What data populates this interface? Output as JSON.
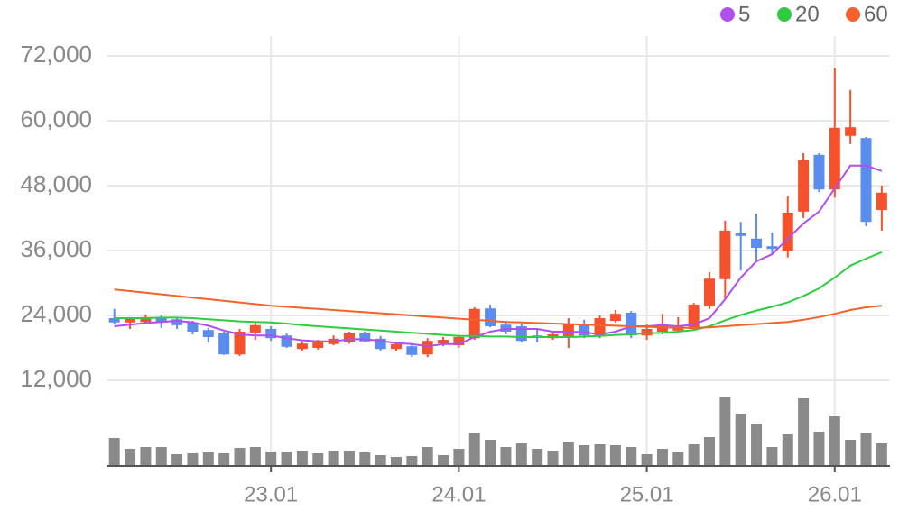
{
  "chart_data": {
    "type": "candlestick",
    "categories": [
      null,
      null,
      null,
      null,
      null,
      null,
      null,
      null,
      null,
      null,
      "23.01",
      null,
      null,
      null,
      null,
      null,
      null,
      null,
      null,
      null,
      null,
      null,
      "24.01",
      null,
      null,
      null,
      null,
      null,
      null,
      null,
      null,
      null,
      null,
      null,
      "25.01",
      null,
      null,
      null,
      null,
      null,
      null,
      null,
      null,
      null,
      null,
      null,
      "26.01",
      null,
      null,
      null
    ],
    "open": [
      23500,
      22700,
      22800,
      23700,
      23300,
      22700,
      21300,
      20700,
      16800,
      20800,
      21500,
      20300,
      17800,
      18000,
      18700,
      19000,
      20800,
      19700,
      17800,
      18300,
      16800,
      18800,
      18500,
      19800,
      25300,
      22300,
      22000,
      20300,
      19800,
      20000,
      22300,
      20200,
      23000,
      24500,
      20300,
      21000,
      21200,
      21500,
      25700,
      30700,
      39200,
      38200,
      36800,
      36000,
      43200,
      53700,
      47300,
      57200,
      56800,
      43500
    ],
    "high": [
      25200,
      23700,
      24200,
      24000,
      23700,
      23000,
      21700,
      21000,
      21500,
      22800,
      22000,
      20700,
      19200,
      19500,
      20300,
      21000,
      21000,
      20200,
      19000,
      18800,
      19800,
      20000,
      20300,
      25500,
      26000,
      23000,
      22500,
      21500,
      21000,
      23500,
      23200,
      24000,
      25000,
      24800,
      22300,
      24300,
      23700,
      26300,
      32000,
      41500,
      41300,
      42800,
      39300,
      46000,
      54000,
      54000,
      69700,
      65700,
      57000,
      48000
    ],
    "low": [
      22300,
      21500,
      22500,
      21700,
      21500,
      20500,
      19000,
      16700,
      16500,
      19500,
      19300,
      18000,
      17500,
      17700,
      18500,
      18800,
      19000,
      17500,
      17500,
      16300,
      16300,
      18300,
      18000,
      19500,
      21800,
      20500,
      19000,
      19000,
      19500,
      18000,
      19800,
      19800,
      22700,
      19800,
      19500,
      20500,
      21000,
      21300,
      25200,
      27000,
      32300,
      34300,
      35300,
      34700,
      42000,
      46800,
      45800,
      55700,
      40500,
      39700
    ],
    "close": [
      22700,
      23500,
      23700,
      22700,
      22200,
      21000,
      20000,
      16800,
      21000,
      22200,
      19800,
      18200,
      18800,
      19300,
      19700,
      20800,
      19200,
      17800,
      18700,
      16700,
      19300,
      19500,
      20000,
      25200,
      22000,
      21000,
      19300,
      20000,
      20500,
      22300,
      20300,
      23500,
      24300,
      20300,
      21500,
      22300,
      22000,
      26000,
      30800,
      39700,
      38700,
      36500,
      36300,
      43000,
      52700,
      47300,
      58700,
      58800,
      41300,
      46700
    ],
    "up_color": "#f4512c",
    "down_color": "#5b8def",
    "series": [
      {
        "name": "5",
        "color": "#b04ef0",
        "values": [
          22000,
          22300,
          22600,
          22800,
          23000,
          22700,
          22100,
          21200,
          20500,
          20300,
          20300,
          19800,
          19400,
          19200,
          19200,
          19600,
          19600,
          19300,
          18900,
          18700,
          18300,
          18700,
          18700,
          20000,
          21000,
          21500,
          21500,
          21500,
          21000,
          21000,
          20900,
          20500,
          21000,
          22000,
          22000,
          22200,
          22000,
          22300,
          23500,
          27000,
          31000,
          34000,
          35300,
          38200,
          41000,
          43200,
          47500,
          51700,
          51700,
          50700
        ]
      },
      {
        "name": "20",
        "color": "#2ecc40",
        "values": [
          23500,
          23500,
          23500,
          23600,
          23600,
          23500,
          23300,
          23100,
          22900,
          22800,
          22700,
          22500,
          22200,
          22000,
          21800,
          21600,
          21400,
          21200,
          21000,
          20800,
          20600,
          20400,
          20200,
          20200,
          20100,
          20100,
          20000,
          20000,
          20000,
          20000,
          20100,
          20200,
          20400,
          20500,
          20700,
          20800,
          21000,
          21300,
          22000,
          23100,
          24100,
          24900,
          25600,
          26400,
          27600,
          29000,
          31000,
          33200,
          34500,
          35700
        ]
      },
      {
        "name": "60",
        "color": "#f4622c",
        "values": [
          28800,
          28500,
          28200,
          27900,
          27600,
          27300,
          27000,
          26700,
          26400,
          26100,
          25800,
          25600,
          25400,
          25200,
          25000,
          24800,
          24600,
          24400,
          24200,
          24000,
          23800,
          23600,
          23400,
          23200,
          23000,
          22800,
          22700,
          22600,
          22500,
          22400,
          22300,
          22200,
          22100,
          22000,
          21900,
          21800,
          21700,
          21700,
          21800,
          22000,
          22200,
          22400,
          22600,
          22800,
          23200,
          23700,
          24300,
          25000,
          25500,
          25800
        ]
      }
    ],
    "volume": [
      31,
      19,
      21,
      21,
      13,
      14,
      15,
      14,
      20,
      21,
      16,
      16,
      17,
      14,
      17,
      17,
      15,
      12,
      10,
      11,
      21,
      12,
      19,
      37,
      29,
      21,
      25,
      19,
      17,
      27,
      23,
      24,
      23,
      21,
      13,
      19,
      16,
      24,
      32,
      77,
      58,
      47,
      21,
      35,
      75,
      38,
      55,
      29,
      37,
      25
    ],
    "volume_color": "#8a8a8a",
    "ylim": [
      12000,
      72000
    ],
    "yticks": [
      {
        "value": 12000,
        "label": "12,000"
      },
      {
        "value": 24000,
        "label": "24,000"
      },
      {
        "value": 36000,
        "label": "36,000"
      },
      {
        "value": 48000,
        "label": "48,000"
      },
      {
        "value": 60000,
        "label": "60,000"
      },
      {
        "value": 72000,
        "label": "72,000"
      }
    ],
    "grid": true
  }
}
